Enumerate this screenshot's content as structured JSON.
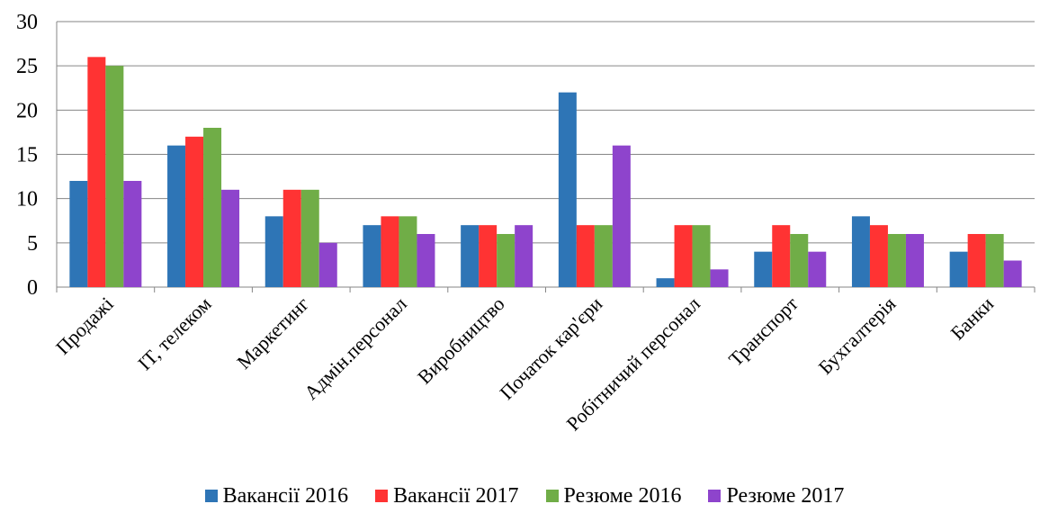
{
  "chart_data": {
    "type": "bar",
    "title": "",
    "xlabel": "",
    "ylabel": "",
    "ylim": [
      0,
      30
    ],
    "yticks": [
      0,
      5,
      10,
      15,
      20,
      25,
      30
    ],
    "grid": true,
    "legend_position": "bottom",
    "categories": [
      "Продажі",
      "IT, телеком",
      "Маркетинг",
      "Адмін.персонал",
      "Виробництво",
      "Початок кар'єри",
      "Робітничий персонал",
      "Транспорт",
      "Бухгалтерія",
      "Банки"
    ],
    "series": [
      {
        "name": "Вакансії 2016",
        "color": "#2E75B6",
        "values": [
          12,
          16,
          8,
          7,
          7,
          22,
          1,
          4,
          8,
          4
        ]
      },
      {
        "name": "Вакансії 2017",
        "color": "#FF3333",
        "values": [
          26,
          17,
          11,
          8,
          7,
          7,
          7,
          7,
          7,
          6
        ]
      },
      {
        "name": "Резюме 2016",
        "color": "#70AD47",
        "values": [
          25,
          18,
          11,
          8,
          6,
          7,
          7,
          6,
          6,
          6
        ]
      },
      {
        "name": "Резюме 2017",
        "color": "#8E44CC",
        "values": [
          12,
          11,
          5,
          6,
          7,
          16,
          2,
          4,
          6,
          3
        ]
      }
    ]
  }
}
